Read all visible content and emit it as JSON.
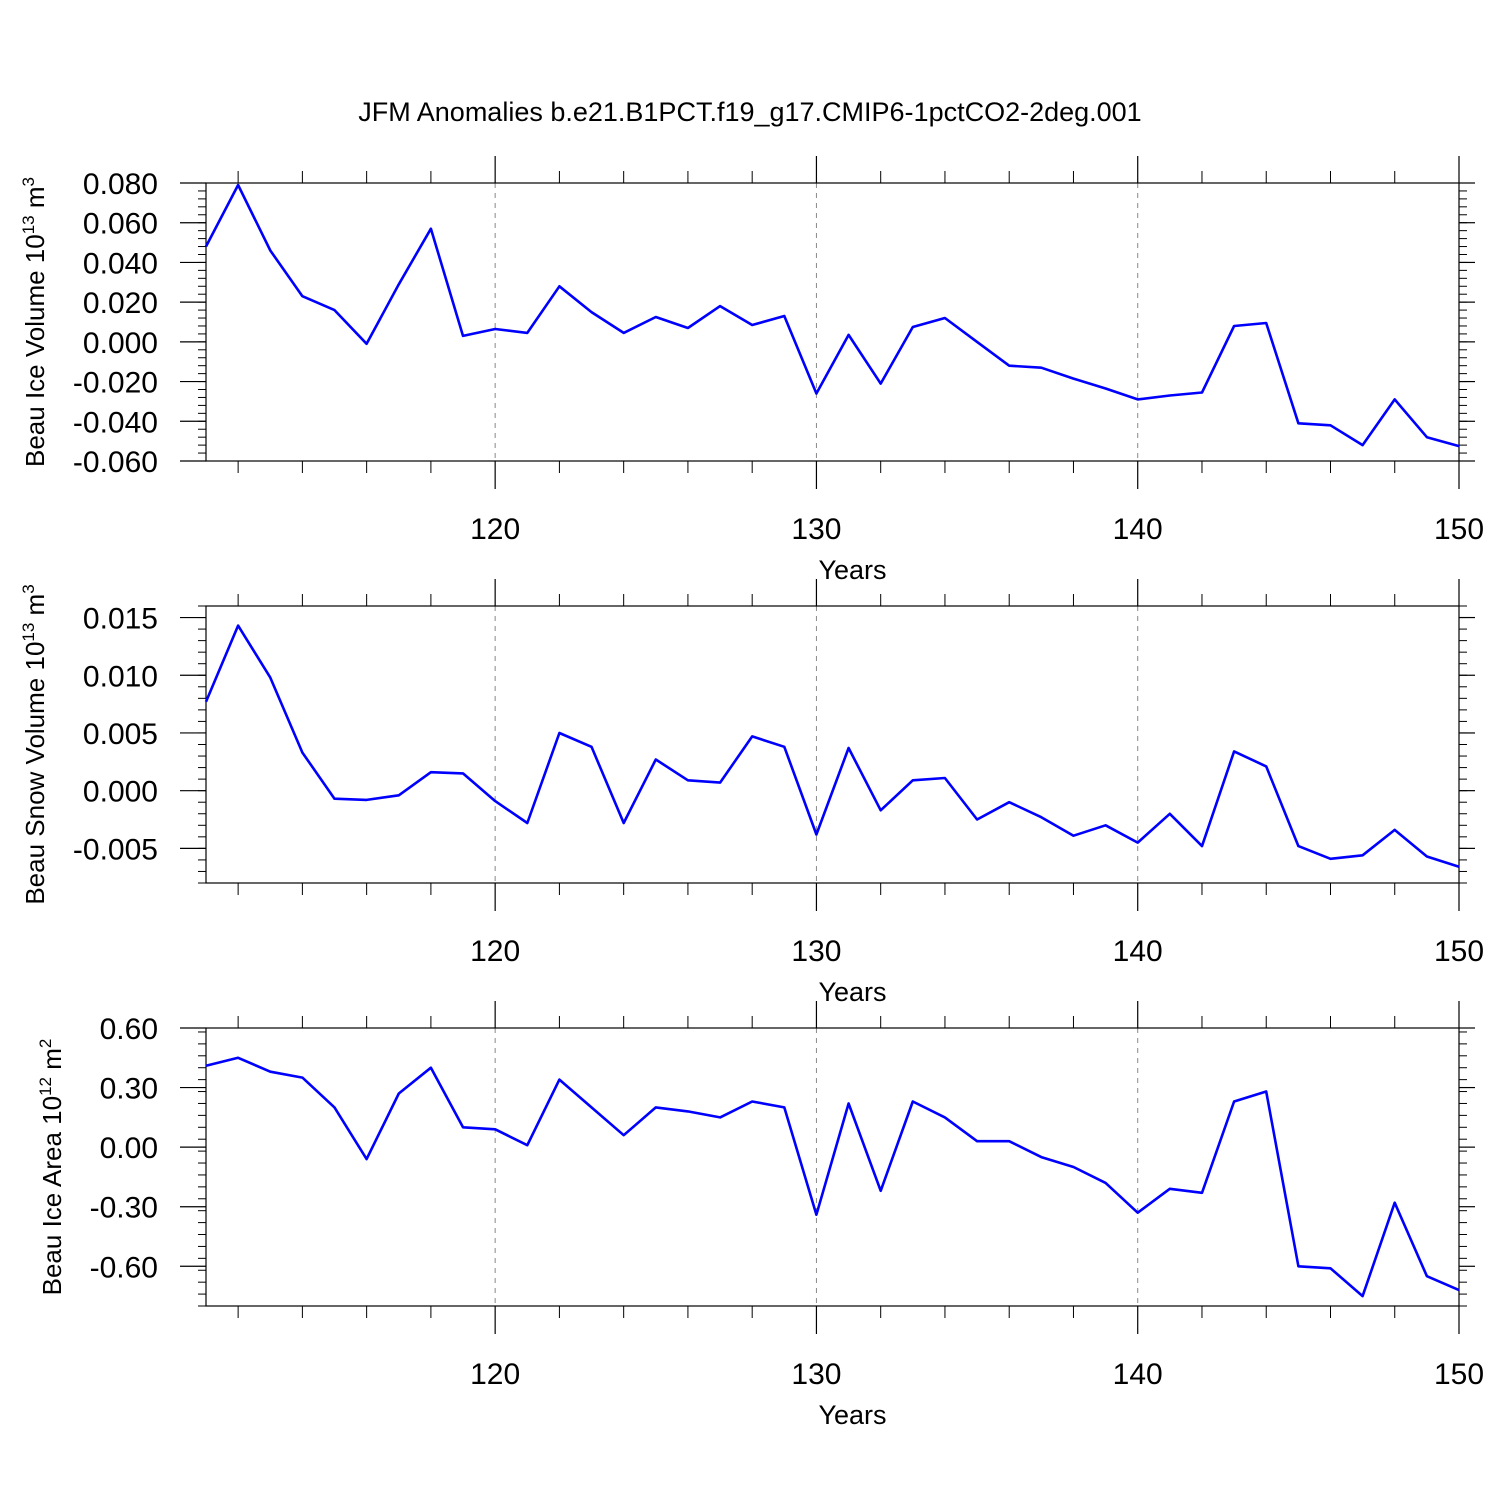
{
  "title": "JFM Anomalies b.e21.B1PCT.f19_g17.CMIP6-1pctCO2-2deg.001",
  "colors": {
    "line": "#0000ff",
    "axis": "#000000",
    "grid": "#888888"
  },
  "chart_data": [
    {
      "type": "line",
      "ylabel": {
        "text": "Beau Ice Volume 10",
        "exponent": "13",
        "unit": " m",
        "unit_exponent": "3"
      },
      "xlabel": "Years",
      "xlim": [
        111,
        150
      ],
      "ylim": [
        -0.06,
        0.08
      ],
      "x_ticks": [
        "120",
        "130",
        "140",
        "150"
      ],
      "y_ticks": [
        "0.080",
        "0.060",
        "0.040",
        "0.020",
        "0.000",
        "-0.020",
        "-0.040",
        "-0.060"
      ],
      "y_tick_values": [
        0.08,
        0.06,
        0.04,
        0.02,
        0.0,
        -0.02,
        -0.04,
        -0.06
      ],
      "grid": "vertical dashed at 120, 130, 140",
      "series": [
        {
          "x": [
            111,
            112,
            113,
            114,
            115,
            116,
            117,
            118,
            119,
            120,
            121,
            122,
            123,
            124,
            125,
            126,
            127,
            128,
            129,
            130,
            131,
            132,
            133,
            134,
            135,
            136,
            137,
            138,
            139,
            140,
            141,
            142,
            143,
            144,
            145,
            146,
            147,
            148,
            149,
            150
          ],
          "values": [
            0.048,
            0.079,
            0.046,
            0.023,
            0.016,
            -0.001,
            0.029,
            0.057,
            0.003,
            0.0065,
            0.0045,
            0.028,
            0.015,
            0.0045,
            0.0125,
            0.007,
            0.018,
            0.0085,
            0.013,
            -0.026,
            0.0035,
            -0.021,
            0.0075,
            0.012,
            0.0,
            -0.012,
            -0.013,
            -0.0185,
            -0.0235,
            -0.029,
            -0.027,
            -0.0255,
            0.008,
            0.0095,
            -0.041,
            -0.042,
            -0.052,
            -0.029,
            -0.048,
            -0.0525
          ]
        }
      ]
    },
    {
      "type": "line",
      "ylabel": {
        "text": "Beau Snow Volume 10",
        "exponent": "13",
        "unit": " m",
        "unit_exponent": "3"
      },
      "xlabel": "Years",
      "xlim": [
        111,
        150
      ],
      "ylim": [
        -0.008,
        0.016
      ],
      "x_ticks": [
        "120",
        "130",
        "140",
        "150"
      ],
      "y_ticks": [
        "0.015",
        "0.010",
        "0.005",
        "0.000",
        "-0.005"
      ],
      "y_tick_values": [
        0.015,
        0.01,
        0.005,
        0.0,
        -0.005
      ],
      "grid": "vertical dashed at 120, 130, 140",
      "series": [
        {
          "x": [
            111,
            112,
            113,
            114,
            115,
            116,
            117,
            118,
            119,
            120,
            121,
            122,
            123,
            124,
            125,
            126,
            127,
            128,
            129,
            130,
            131,
            132,
            133,
            134,
            135,
            136,
            137,
            138,
            139,
            140,
            141,
            142,
            143,
            144,
            145,
            146,
            147,
            148,
            149,
            150
          ],
          "values": [
            0.0077,
            0.0143,
            0.0098,
            0.0033,
            -0.0007,
            -0.0008,
            -0.0004,
            0.0016,
            0.0015,
            -0.0009,
            -0.0028,
            0.005,
            0.0038,
            -0.0028,
            0.0027,
            0.0009,
            0.0007,
            0.0047,
            0.0038,
            -0.0038,
            0.0037,
            -0.0017,
            0.0009,
            0.0011,
            -0.0025,
            -0.001,
            -0.0023,
            -0.0039,
            -0.003,
            -0.0045,
            -0.002,
            -0.0048,
            0.0034,
            0.0021,
            -0.0048,
            -0.0059,
            -0.0056,
            -0.0034,
            -0.0057,
            -0.0066
          ]
        }
      ]
    },
    {
      "type": "line",
      "ylabel": {
        "text": "Beau Ice Area 10",
        "exponent": "12",
        "unit": " m",
        "unit_exponent": "2"
      },
      "xlabel": "Years",
      "xlim": [
        111,
        150
      ],
      "ylim": [
        -0.8,
        0.6
      ],
      "x_ticks": [
        "120",
        "130",
        "140",
        "150"
      ],
      "y_ticks": [
        "0.60",
        "0.30",
        "0.00",
        "-0.30",
        "-0.60"
      ],
      "y_tick_values": [
        0.6,
        0.3,
        0.0,
        -0.3,
        -0.6
      ],
      "grid": "vertical dashed at 120, 130, 140",
      "series": [
        {
          "x": [
            111,
            112,
            113,
            114,
            115,
            116,
            117,
            118,
            119,
            120,
            121,
            122,
            123,
            124,
            125,
            126,
            127,
            128,
            129,
            130,
            131,
            132,
            133,
            134,
            135,
            136,
            137,
            138,
            139,
            140,
            141,
            142,
            143,
            144,
            145,
            146,
            147,
            148,
            149,
            150
          ],
          "values": [
            0.41,
            0.45,
            0.38,
            0.35,
            0.2,
            -0.06,
            0.27,
            0.4,
            0.1,
            0.09,
            0.01,
            0.34,
            0.2,
            0.06,
            0.2,
            0.18,
            0.15,
            0.23,
            0.2,
            -0.34,
            0.22,
            -0.22,
            0.23,
            0.15,
            0.03,
            0.03,
            -0.05,
            -0.1,
            -0.18,
            -0.33,
            -0.21,
            -0.23,
            0.23,
            0.28,
            -0.6,
            -0.61,
            -0.75,
            -0.28,
            -0.65,
            -0.72
          ]
        }
      ]
    }
  ]
}
